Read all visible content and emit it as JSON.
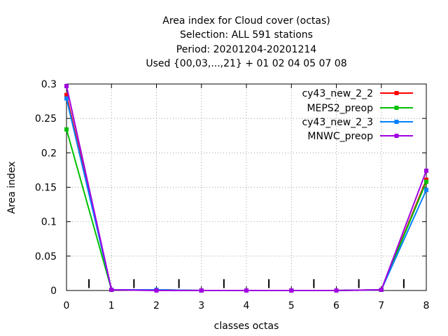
{
  "chart_data": {
    "type": "line",
    "title": [
      "Area index  for Cloud cover (octas)",
      "Selection: ALL    591 stations",
      "Period: 20201204-20201214",
      "Used {00,03,...,21} + 01 02 04 05 07 08"
    ],
    "xlabel": "classes octas",
    "ylabel": "Area index",
    "xlim": [
      0,
      8
    ],
    "ylim": [
      0,
      0.3
    ],
    "x_ticks": [
      "0",
      "1",
      "2",
      "3",
      "4",
      "5",
      "6",
      "7",
      "8"
    ],
    "y_ticks": [
      "0",
      "0.05",
      "0.1",
      "0.15",
      "0.2",
      "0.25",
      "0.3"
    ],
    "grid": true,
    "legend_position": "top-right",
    "x": [
      0,
      1,
      2,
      3,
      4,
      5,
      6,
      7,
      8
    ],
    "series": [
      {
        "name": "cy43_new_2_2",
        "color": "#ff0000",
        "values": [
          0.284,
          0.001,
          0.001,
          0.0,
          0.0,
          0.0,
          0.0,
          0.001,
          0.161
        ]
      },
      {
        "name": "MEPS2_preop",
        "color": "#00c000",
        "values": [
          0.234,
          0.001,
          0.001,
          0.0,
          0.0,
          0.0,
          0.0,
          0.001,
          0.158
        ]
      },
      {
        "name": "cy43_new_2_3",
        "color": "#0080ff",
        "values": [
          0.279,
          0.001,
          0.001,
          0.0,
          0.0,
          0.0,
          0.0,
          0.001,
          0.146
        ]
      },
      {
        "name": "MNWC_preop",
        "color": "#a000e0",
        "values": [
          0.297,
          0.001,
          0.0,
          0.0,
          0.0,
          0.0,
          0.0,
          0.001,
          0.174
        ]
      }
    ],
    "class_boundaries": [
      0.5,
      1.5,
      2.5,
      3.5,
      4.5,
      5.5,
      6.5,
      7.5
    ]
  }
}
